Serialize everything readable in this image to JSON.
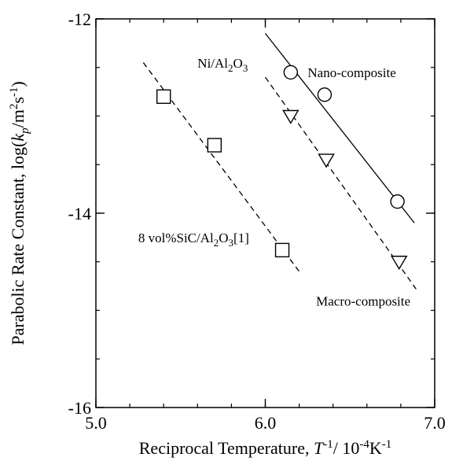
{
  "chart_data": {
    "type": "scatter",
    "xlabel": {
      "prefix": "Reciprocal Temperature, ",
      "var": "T",
      "sup1": "-1",
      "mid": "/ 10",
      "sup2": "-4",
      "unit": "K",
      "sup3": "-1"
    },
    "ylabel": {
      "prefix": "Parabolic Rate Constant, log(",
      "var": "k",
      "sub": "p",
      "mid": "/m",
      "sup1": "2",
      "mid2": "s",
      "sup2": "-1",
      "end": ")"
    },
    "xlim": [
      5.0,
      7.0
    ],
    "ylim": [
      -16,
      -12
    ],
    "xticks": [
      {
        "value": 5.0,
        "label": "5.0"
      },
      {
        "value": 6.0,
        "label": "6.0"
      },
      {
        "value": 7.0,
        "label": "7.0"
      }
    ],
    "yticks": [
      {
        "value": -12,
        "label": "-12"
      },
      {
        "value": -14,
        "label": "-14"
      },
      {
        "value": -16,
        "label": "-16"
      }
    ],
    "minor_step_x": 0.2,
    "minor_step_y": 0.5,
    "grid": false,
    "series": [
      {
        "name": "Ni/Al2O3 Nano-composite",
        "marker": "circle",
        "line": "solid",
        "points": [
          {
            "x": 6.15,
            "y": -12.55
          },
          {
            "x": 6.35,
            "y": -12.78
          },
          {
            "x": 6.78,
            "y": -13.88
          }
        ],
        "fit": [
          {
            "x": 6.0,
            "y": -12.15
          },
          {
            "x": 6.88,
            "y": -14.1
          }
        ]
      },
      {
        "name": "Macro-composite",
        "marker": "triangle-down",
        "line": "dashed",
        "points": [
          {
            "x": 6.15,
            "y": -13.0
          },
          {
            "x": 6.36,
            "y": -13.45
          },
          {
            "x": 6.79,
            "y": -14.5
          }
        ],
        "fit": [
          {
            "x": 6.0,
            "y": -12.6
          },
          {
            "x": 6.89,
            "y": -14.78
          }
        ]
      },
      {
        "name": "8 vol%SiC/Al2O3[1]",
        "marker": "square",
        "line": "dashed",
        "points": [
          {
            "x": 5.4,
            "y": -12.8
          },
          {
            "x": 5.7,
            "y": -13.3
          },
          {
            "x": 6.1,
            "y": -14.38
          }
        ],
        "fit": [
          {
            "x": 5.28,
            "y": -12.45
          },
          {
            "x": 6.2,
            "y": -14.6
          }
        ]
      }
    ],
    "annotations": [
      {
        "id": "ni-al2o3",
        "x": 5.6,
        "y": -12.5,
        "parts": [
          {
            "t": "Ni/Al"
          },
          {
            "t": "2",
            "sub": true
          },
          {
            "t": "O"
          },
          {
            "t": "3",
            "sub": true
          }
        ]
      },
      {
        "id": "nano-composite",
        "x": 6.25,
        "y": -12.6,
        "parts": [
          {
            "t": "Nano-composite"
          }
        ]
      },
      {
        "id": "macro-composite",
        "x": 6.3,
        "y": -14.95,
        "parts": [
          {
            "t": "Macro-composite"
          }
        ]
      },
      {
        "id": "sic-al2o3",
        "x": 5.25,
        "y": -14.3,
        "parts": [
          {
            "t": "8 vol%SiC/Al"
          },
          {
            "t": "2",
            "sub": true
          },
          {
            "t": "O"
          },
          {
            "t": "3",
            "sub": true
          },
          {
            "t": "[1]"
          }
        ]
      }
    ]
  }
}
